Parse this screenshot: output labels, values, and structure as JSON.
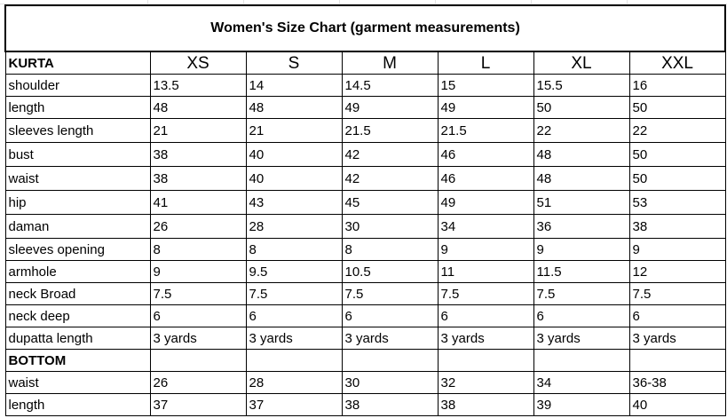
{
  "title": "Women's Size Chart (garment measurements)",
  "kurta": {
    "section_label": "KURTA",
    "sizes": [
      "XS",
      "S",
      "M",
      "L",
      "XL",
      "XXL"
    ],
    "rows": [
      {
        "label": "shoulder",
        "values": [
          "13.5",
          "14",
          "14.5",
          "15",
          "15.5",
          "16"
        ]
      },
      {
        "label": "length",
        "values": [
          "48",
          "48",
          "49",
          "49",
          "50",
          "50"
        ]
      },
      {
        "label": "sleeves length",
        "values": [
          "21",
          "21",
          "21.5",
          "21.5",
          "22",
          "22"
        ]
      },
      {
        "label": "bust",
        "values": [
          "38",
          "40",
          "42",
          "46",
          "48",
          "50"
        ]
      },
      {
        "label": "waist",
        "values": [
          "38",
          "40",
          "42",
          "46",
          "48",
          "50"
        ]
      },
      {
        "label": "hip",
        "values": [
          "41",
          "43",
          "45",
          "49",
          "51",
          "53"
        ]
      },
      {
        "label": "daman",
        "values": [
          "26",
          "28",
          "30",
          "34",
          "36",
          "38"
        ]
      },
      {
        "label": "sleeves opening",
        "values": [
          "8",
          "8",
          "8",
          "9",
          "9",
          "9"
        ]
      },
      {
        "label": "armhole",
        "values": [
          "9",
          "9.5",
          "10.5",
          "11",
          "11.5",
          "12"
        ]
      },
      {
        "label": "neck Broad",
        "values": [
          "7.5",
          "7.5",
          "7.5",
          "7.5",
          "7.5",
          "7.5"
        ]
      },
      {
        "label": "neck deep",
        "values": [
          "6",
          "6",
          "6",
          "6",
          "6",
          "6"
        ]
      },
      {
        "label": "dupatta length",
        "values": [
          "3 yards",
          "3 yards",
          "3 yards",
          "3 yards",
          "3 yards",
          "3 yards"
        ]
      }
    ]
  },
  "bottom": {
    "section_label": "BOTTOM",
    "rows": [
      {
        "label": "waist",
        "values": [
          "26",
          "28",
          "30",
          "32",
          "34",
          "36-38"
        ]
      },
      {
        "label": "length",
        "values": [
          "37",
          "37",
          "38",
          "38",
          "39",
          "40"
        ]
      }
    ]
  }
}
